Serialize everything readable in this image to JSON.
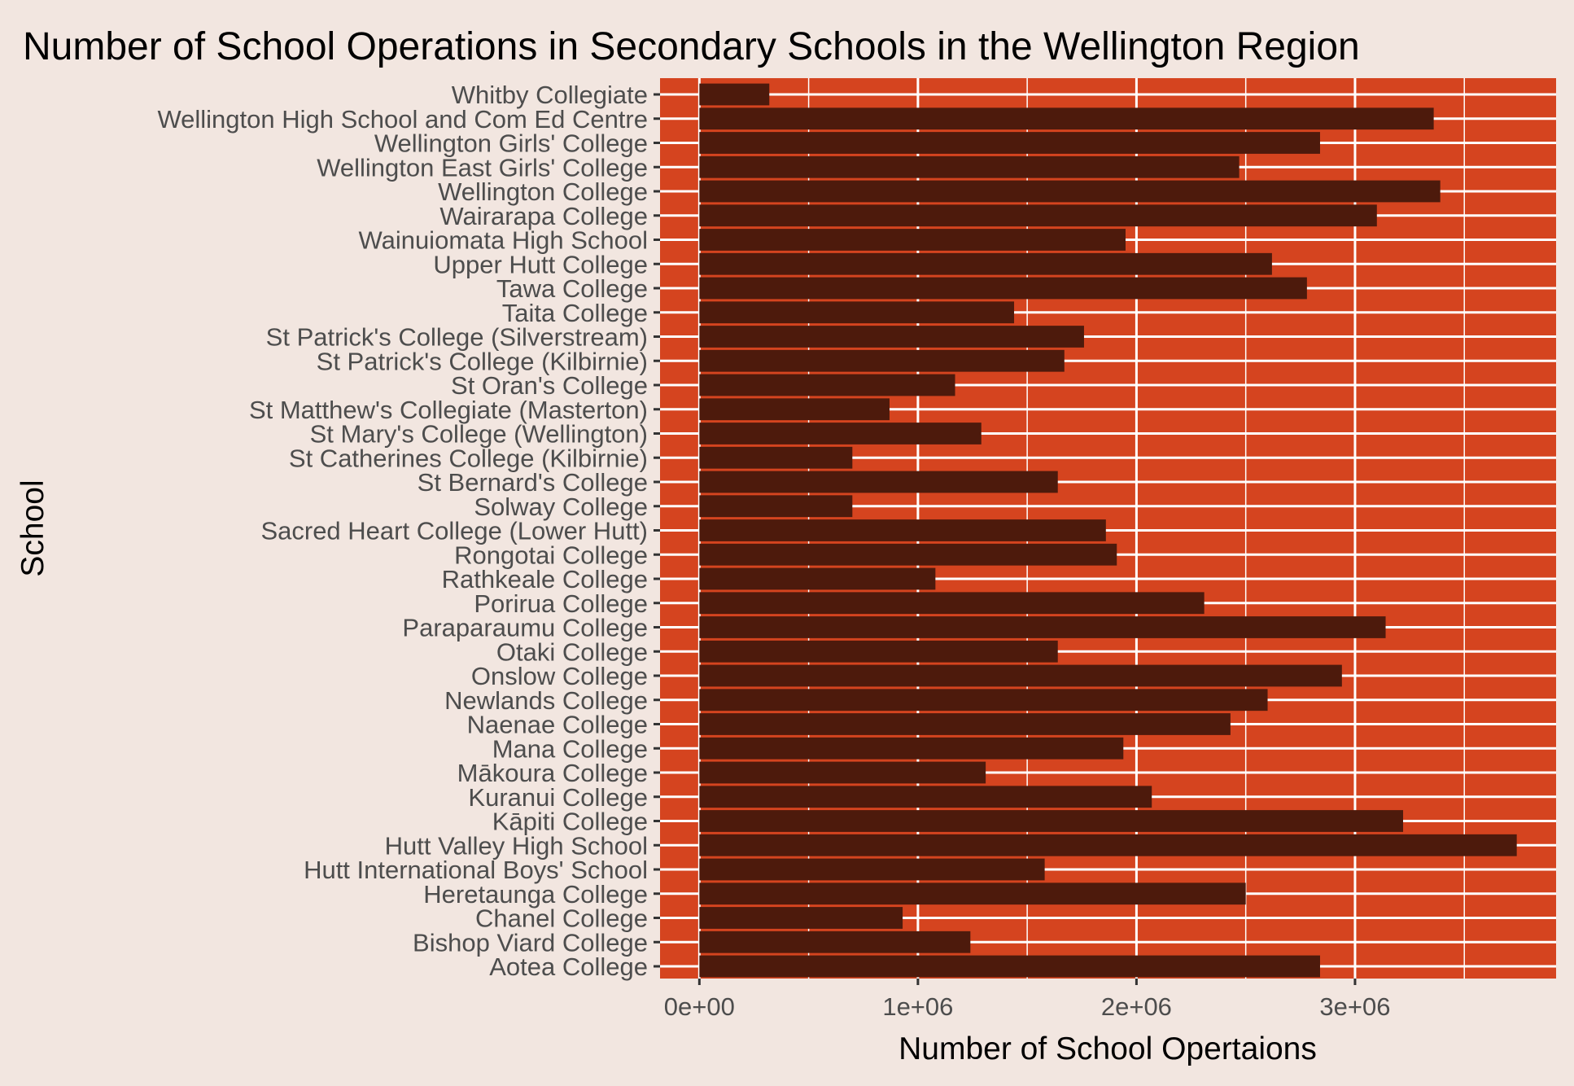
{
  "chart_data": {
    "type": "bar",
    "orientation": "horizontal",
    "title": "Number of School Operations in Secondary Schools in the Wellington Region",
    "xlabel": "Number of School Opertaions",
    "ylabel": "School",
    "xlim": [
      -180000,
      3920000
    ],
    "xticks": [
      0,
      1000000,
      2000000,
      3000000
    ],
    "xtick_labels": [
      "0e+00",
      "1e+06",
      "2e+06",
      "3e+06"
    ],
    "grid": true,
    "legend": "none",
    "colors": {
      "background": "#F2E6E0",
      "panel": "#D5441F",
      "bar": "#4D1A0C",
      "grid": "#FFFFFF",
      "tick_text": "#4D4D4D"
    },
    "categories": [
      "Whitby Collegiate",
      "Wellington High School and Com Ed Centre",
      "Wellington Girls' College",
      "Wellington East Girls' College",
      "Wellington College",
      "Wairarapa College",
      "Wainuiomata High School",
      "Upper Hutt College",
      "Tawa College",
      "Taita College",
      "St Patrick's College (Silverstream)",
      "St Patrick's College (Kilbirnie)",
      "St Oran's College",
      "St Matthew's Collegiate (Masterton)",
      "St Mary's College (Wellington)",
      "St Catherines College (Kilbirnie)",
      "St Bernard's College",
      "Solway College",
      "Sacred Heart College (Lower Hutt)",
      "Rongotai College",
      "Rathkeale College",
      "Porirua College",
      "Paraparaumu College",
      "Otaki College",
      "Onslow College",
      "Newlands College",
      "Naenae College",
      "Mana College",
      "Mākoura College",
      "Kuranui College",
      "Kāpiti College",
      "Hutt Valley High School",
      "Hutt International Boys' School",
      "Heretaunga College",
      "Chanel College",
      "Bishop Viard College",
      "Aotea College"
    ],
    "values": [
      320000,
      3360000,
      2840000,
      2470000,
      3390000,
      3100000,
      1950000,
      2620000,
      2780000,
      1440000,
      1760000,
      1670000,
      1170000,
      870000,
      1290000,
      700000,
      1640000,
      700000,
      1860000,
      1910000,
      1080000,
      2310000,
      3140000,
      1640000,
      2940000,
      2600000,
      2430000,
      1940000,
      1310000,
      2070000,
      3220000,
      3740000,
      1580000,
      2500000,
      930000,
      1240000,
      2840000
    ]
  }
}
